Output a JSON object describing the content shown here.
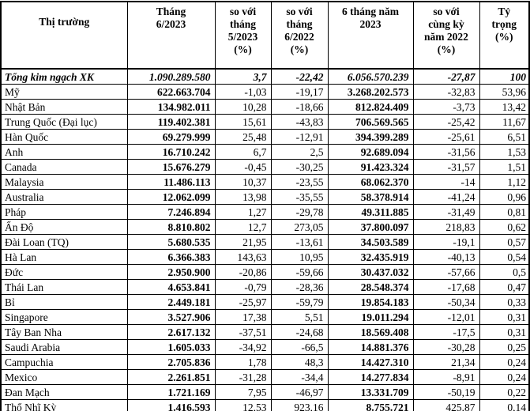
{
  "table": {
    "title": "Export markets table",
    "columns": [
      {
        "label": "Thị trường"
      },
      {
        "label": "Tháng\n6/2023"
      },
      {
        "label": "so với\ntháng\n5/2023\n(%)"
      },
      {
        "label": "so với\ntháng\n6/2022\n(%)"
      },
      {
        "label": "6 tháng năm\n2023"
      },
      {
        "label": "so với\ncùng kỳ\nnăm 2022\n(%)"
      },
      {
        "label": "Tỷ\ntrọng\n(%)"
      }
    ],
    "rows": [
      {
        "cells": [
          "Tổng kim ngạch XK",
          "1.090.289.580",
          "3,7",
          "-22,42",
          "6.056.570.239",
          "-27,87",
          "100"
        ]
      },
      {
        "cells": [
          "Mỹ",
          "622.663.704",
          "-1,03",
          "-19,17",
          "3.268.202.573",
          "-32,83",
          "53,96"
        ]
      },
      {
        "cells": [
          "Nhật Bản",
          "134.982.011",
          "10,28",
          "-18,66",
          "812.824.409",
          "-3,73",
          "13,42"
        ]
      },
      {
        "cells": [
          "Trung Quốc (Đại lục)",
          "119.402.381",
          "15,61",
          "-43,83",
          "706.569.565",
          "-25,42",
          "11,67"
        ]
      },
      {
        "cells": [
          "Hàn Quốc",
          "69.279.999",
          "25,48",
          "-12,91",
          "394.399.289",
          "-25,61",
          "6,51"
        ]
      },
      {
        "cells": [
          "Anh",
          "16.710.242",
          "6,7",
          "2,5",
          "92.689.094",
          "-31,56",
          "1,53"
        ]
      },
      {
        "cells": [
          "Canada",
          "15.676.279",
          "-0,45",
          "-30,25",
          "91.423.324",
          "-31,57",
          "1,51"
        ]
      },
      {
        "cells": [
          "Malaysia",
          "11.486.113",
          "10,37",
          "-23,55",
          "68.062.370",
          "-14",
          "1,12"
        ]
      },
      {
        "cells": [
          "Australia",
          "12.062.099",
          "13,98",
          "-35,55",
          "58.378.914",
          "-41,24",
          "0,96"
        ]
      },
      {
        "cells": [
          "Pháp",
          "7.246.894",
          "1,27",
          "-29,78",
          "49.311.885",
          "-31,49",
          "0,81"
        ]
      },
      {
        "cells": [
          "Ấn Độ",
          "8.810.802",
          "12,7",
          "273,05",
          "37.800.097",
          "218,83",
          "0,62"
        ]
      },
      {
        "cells": [
          "Đài Loan (TQ)",
          "5.680.535",
          "21,95",
          "-13,61",
          "34.503.589",
          "-19,1",
          "0,57"
        ]
      },
      {
        "cells": [
          "Hà Lan",
          "6.366.383",
          "143,63",
          "10,95",
          "32.435.919",
          "-40,13",
          "0,54"
        ]
      },
      {
        "cells": [
          "Đức",
          "2.950.900",
          "-20,86",
          "-59,66",
          "30.437.032",
          "-57,66",
          "0,5"
        ]
      },
      {
        "cells": [
          "Thái Lan",
          "4.653.841",
          "-0,79",
          "-28,36",
          "28.548.374",
          "-17,68",
          "0,47"
        ]
      },
      {
        "cells": [
          "Bỉ",
          "2.449.181",
          "-25,97",
          "-59,79",
          "19.854.183",
          "-50,34",
          "0,33"
        ]
      },
      {
        "cells": [
          "Singapore",
          "3.527.906",
          "17,38",
          "5,51",
          "19.011.294",
          "-12,01",
          "0,31"
        ]
      },
      {
        "cells": [
          "Tây Ban Nha",
          "2.617.132",
          "-37,51",
          "-24,68",
          "18.569.408",
          "-17,5",
          "0,31"
        ]
      },
      {
        "cells": [
          "Saudi Arabia",
          "1.605.033",
          "-34,92",
          "-66,5",
          "14.881.376",
          "-30,28",
          "0,25"
        ]
      },
      {
        "cells": [
          "Campuchia",
          "2.705.836",
          "1,78",
          "48,3",
          "14.427.310",
          "21,34",
          "0,24"
        ]
      },
      {
        "cells": [
          "Mexico",
          "2.261.851",
          "-31,28",
          "-34,4",
          "14.277.834",
          "-8,91",
          "0,24"
        ]
      },
      {
        "cells": [
          "Đan Mạch",
          "1.721.169",
          "7,95",
          "-46,97",
          "13.331.709",
          "-50,19",
          "0,22"
        ]
      },
      {
        "cells": [
          "Thổ Nhĩ Kỳ",
          "1.416.593",
          "12,53",
          "923,16",
          "8.755.721",
          "425,87",
          "0,14"
        ]
      }
    ]
  }
}
